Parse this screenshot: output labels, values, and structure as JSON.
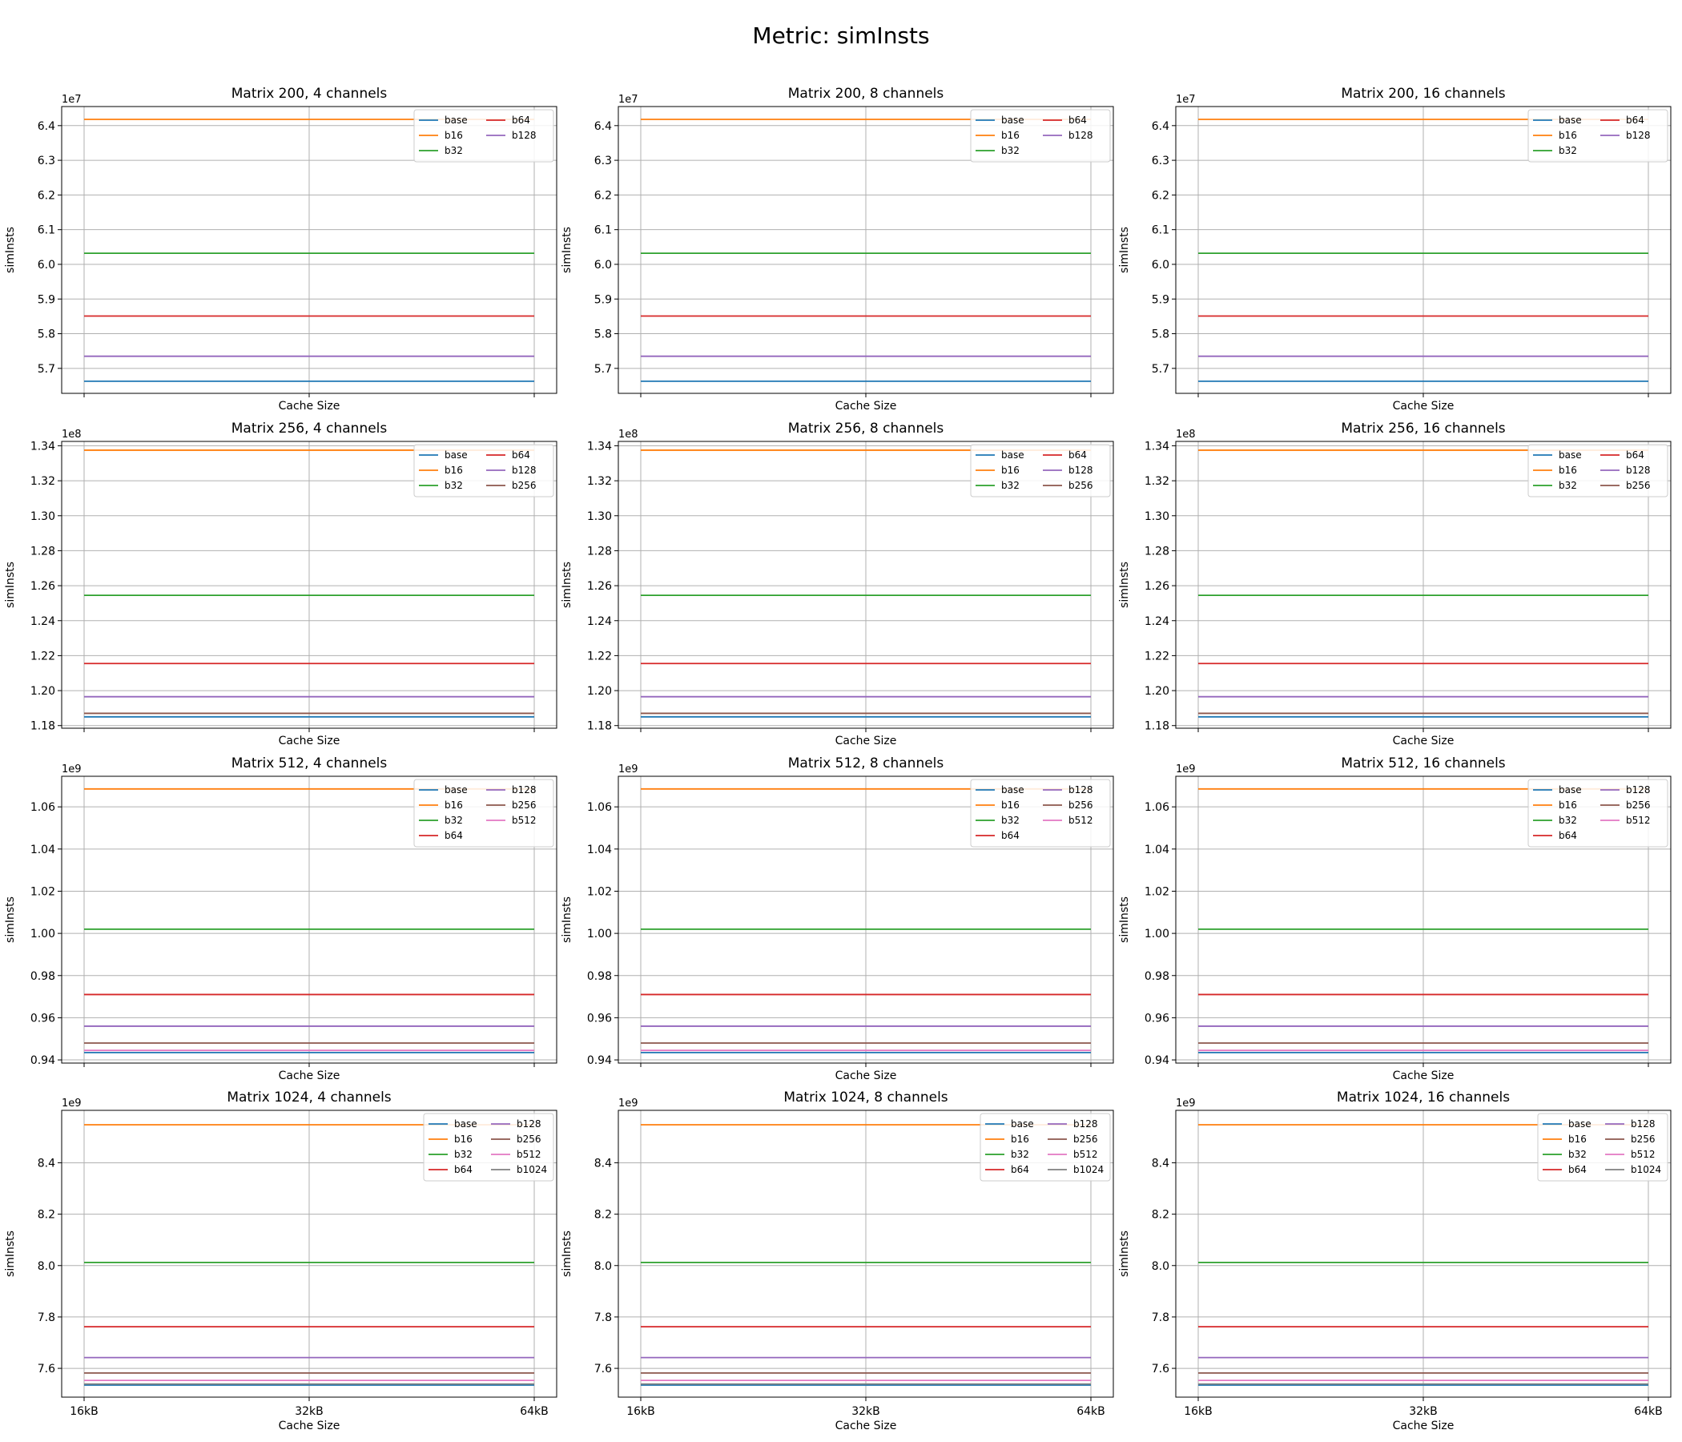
{
  "suptitle": "Metric: simInsts",
  "colors": {
    "base": "#1f77b4",
    "b16": "#ff7f0e",
    "b32": "#2ca02c",
    "b64": "#d62728",
    "b128": "#9467bd",
    "b256": "#8c564b",
    "b512": "#e377c2",
    "b1024": "#7f7f7f"
  },
  "chart_data": [
    {
      "type": "line",
      "title": "Matrix 200, 4 channels",
      "xlabel": "Cache Size",
      "ylabel": "simInsts",
      "categories": [
        "16kB",
        "32kB",
        "64kB"
      ],
      "show_xticklabels": false,
      "offset": "1e7",
      "scale": 10000000,
      "ylim": [
        5.628,
        6.455
      ],
      "yticks": [
        "5.7",
        "5.8",
        "5.9",
        "6.0",
        "6.1",
        "6.2",
        "6.3",
        "6.4"
      ],
      "legend_position": "top-right",
      "legend_columns": 2,
      "series": [
        {
          "name": "base",
          "values": [
            5.663,
            5.663,
            5.663
          ]
        },
        {
          "name": "b16",
          "values": [
            6.418,
            6.418,
            6.418
          ]
        },
        {
          "name": "b32",
          "values": [
            6.032,
            6.032,
            6.032
          ]
        },
        {
          "name": "b64",
          "values": [
            5.851,
            5.851,
            5.851
          ]
        },
        {
          "name": "b128",
          "values": [
            5.735,
            5.735,
            5.735
          ]
        }
      ]
    },
    {
      "type": "line",
      "title": "Matrix 200, 8 channels",
      "xlabel": "Cache Size",
      "ylabel": "simInsts",
      "categories": [
        "16kB",
        "32kB",
        "64kB"
      ],
      "show_xticklabels": false,
      "offset": "1e7",
      "scale": 10000000,
      "ylim": [
        5.628,
        6.455
      ],
      "yticks": [
        "5.7",
        "5.8",
        "5.9",
        "6.0",
        "6.1",
        "6.2",
        "6.3",
        "6.4"
      ],
      "legend_position": "top-right",
      "legend_columns": 2,
      "series": [
        {
          "name": "base",
          "values": [
            5.663,
            5.663,
            5.663
          ]
        },
        {
          "name": "b16",
          "values": [
            6.418,
            6.418,
            6.418
          ]
        },
        {
          "name": "b32",
          "values": [
            6.032,
            6.032,
            6.032
          ]
        },
        {
          "name": "b64",
          "values": [
            5.851,
            5.851,
            5.851
          ]
        },
        {
          "name": "b128",
          "values": [
            5.735,
            5.735,
            5.735
          ]
        }
      ]
    },
    {
      "type": "line",
      "title": "Matrix 200, 16 channels",
      "xlabel": "Cache Size",
      "ylabel": "simInsts",
      "categories": [
        "16kB",
        "32kB",
        "64kB"
      ],
      "show_xticklabels": false,
      "offset": "1e7",
      "scale": 10000000,
      "ylim": [
        5.628,
        6.455
      ],
      "yticks": [
        "5.7",
        "5.8",
        "5.9",
        "6.0",
        "6.1",
        "6.2",
        "6.3",
        "6.4"
      ],
      "legend_position": "top-right",
      "legend_columns": 2,
      "series": [
        {
          "name": "base",
          "values": [
            5.663,
            5.663,
            5.663
          ]
        },
        {
          "name": "b16",
          "values": [
            6.418,
            6.418,
            6.418
          ]
        },
        {
          "name": "b32",
          "values": [
            6.032,
            6.032,
            6.032
          ]
        },
        {
          "name": "b64",
          "values": [
            5.851,
            5.851,
            5.851
          ]
        },
        {
          "name": "b128",
          "values": [
            5.735,
            5.735,
            5.735
          ]
        }
      ]
    },
    {
      "type": "line",
      "title": "Matrix 256, 4 channels",
      "xlabel": "Cache Size",
      "ylabel": "simInsts",
      "categories": [
        "16kB",
        "32kB",
        "64kB"
      ],
      "show_xticklabels": false,
      "offset": "1e8",
      "scale": 100000000,
      "ylim": [
        1.1785,
        1.3425
      ],
      "yticks": [
        "1.18",
        "1.20",
        "1.22",
        "1.24",
        "1.26",
        "1.28",
        "1.30",
        "1.32",
        "1.34"
      ],
      "legend_position": "top-right",
      "legend_columns": 2,
      "series": [
        {
          "name": "base",
          "values": [
            1.185,
            1.185,
            1.185
          ]
        },
        {
          "name": "b16",
          "values": [
            1.3375,
            1.3375,
            1.3375
          ]
        },
        {
          "name": "b32",
          "values": [
            1.2545,
            1.2545,
            1.2545
          ]
        },
        {
          "name": "b64",
          "values": [
            1.2155,
            1.2155,
            1.2155
          ]
        },
        {
          "name": "b128",
          "values": [
            1.1965,
            1.1965,
            1.1965
          ]
        },
        {
          "name": "b256",
          "values": [
            1.187,
            1.187,
            1.187
          ]
        }
      ]
    },
    {
      "type": "line",
      "title": "Matrix 256, 8 channels",
      "xlabel": "Cache Size",
      "ylabel": "simInsts",
      "categories": [
        "16kB",
        "32kB",
        "64kB"
      ],
      "show_xticklabels": false,
      "offset": "1e8",
      "scale": 100000000,
      "ylim": [
        1.1785,
        1.3425
      ],
      "yticks": [
        "1.18",
        "1.20",
        "1.22",
        "1.24",
        "1.26",
        "1.28",
        "1.30",
        "1.32",
        "1.34"
      ],
      "legend_position": "top-right",
      "legend_columns": 2,
      "series": [
        {
          "name": "base",
          "values": [
            1.185,
            1.185,
            1.185
          ]
        },
        {
          "name": "b16",
          "values": [
            1.3375,
            1.3375,
            1.3375
          ]
        },
        {
          "name": "b32",
          "values": [
            1.2545,
            1.2545,
            1.2545
          ]
        },
        {
          "name": "b64",
          "values": [
            1.2155,
            1.2155,
            1.2155
          ]
        },
        {
          "name": "b128",
          "values": [
            1.1965,
            1.1965,
            1.1965
          ]
        },
        {
          "name": "b256",
          "values": [
            1.187,
            1.187,
            1.187
          ]
        }
      ]
    },
    {
      "type": "line",
      "title": "Matrix 256, 16 channels",
      "xlabel": "Cache Size",
      "ylabel": "simInsts",
      "categories": [
        "16kB",
        "32kB",
        "64kB"
      ],
      "show_xticklabels": false,
      "offset": "1e8",
      "scale": 100000000,
      "ylim": [
        1.1785,
        1.3425
      ],
      "yticks": [
        "1.18",
        "1.20",
        "1.22",
        "1.24",
        "1.26",
        "1.28",
        "1.30",
        "1.32",
        "1.34"
      ],
      "legend_position": "top-right",
      "legend_columns": 2,
      "series": [
        {
          "name": "base",
          "values": [
            1.185,
            1.185,
            1.185
          ]
        },
        {
          "name": "b16",
          "values": [
            1.3375,
            1.3375,
            1.3375
          ]
        },
        {
          "name": "b32",
          "values": [
            1.2545,
            1.2545,
            1.2545
          ]
        },
        {
          "name": "b64",
          "values": [
            1.2155,
            1.2155,
            1.2155
          ]
        },
        {
          "name": "b128",
          "values": [
            1.1965,
            1.1965,
            1.1965
          ]
        },
        {
          "name": "b256",
          "values": [
            1.187,
            1.187,
            1.187
          ]
        }
      ]
    },
    {
      "type": "line",
      "title": "Matrix 512, 4 channels",
      "xlabel": "Cache Size",
      "ylabel": "simInsts",
      "categories": [
        "16kB",
        "32kB",
        "64kB"
      ],
      "show_xticklabels": false,
      "offset": "1e9",
      "scale": 1000000000,
      "ylim": [
        0.9385,
        1.0745
      ],
      "yticks": [
        "0.94",
        "0.96",
        "0.98",
        "1.00",
        "1.02",
        "1.04",
        "1.06"
      ],
      "legend_position": "top-right",
      "legend_columns": 2,
      "series": [
        {
          "name": "base",
          "values": [
            0.9435,
            0.9435,
            0.9435
          ]
        },
        {
          "name": "b16",
          "values": [
            1.0685,
            1.0685,
            1.0685
          ]
        },
        {
          "name": "b32",
          "values": [
            1.002,
            1.002,
            1.002
          ]
        },
        {
          "name": "b64",
          "values": [
            0.971,
            0.971,
            0.971
          ]
        },
        {
          "name": "b128",
          "values": [
            0.956,
            0.956,
            0.956
          ]
        },
        {
          "name": "b256",
          "values": [
            0.948,
            0.948,
            0.948
          ]
        },
        {
          "name": "b512",
          "values": [
            0.9445,
            0.9445,
            0.9445
          ]
        }
      ]
    },
    {
      "type": "line",
      "title": "Matrix 512, 8 channels",
      "xlabel": "Cache Size",
      "ylabel": "simInsts",
      "categories": [
        "16kB",
        "32kB",
        "64kB"
      ],
      "show_xticklabels": false,
      "offset": "1e9",
      "scale": 1000000000,
      "ylim": [
        0.9385,
        1.0745
      ],
      "yticks": [
        "0.94",
        "0.96",
        "0.98",
        "1.00",
        "1.02",
        "1.04",
        "1.06"
      ],
      "legend_position": "top-right",
      "legend_columns": 2,
      "series": [
        {
          "name": "base",
          "values": [
            0.9435,
            0.9435,
            0.9435
          ]
        },
        {
          "name": "b16",
          "values": [
            1.0685,
            1.0685,
            1.0685
          ]
        },
        {
          "name": "b32",
          "values": [
            1.002,
            1.002,
            1.002
          ]
        },
        {
          "name": "b64",
          "values": [
            0.971,
            0.971,
            0.971
          ]
        },
        {
          "name": "b128",
          "values": [
            0.956,
            0.956,
            0.956
          ]
        },
        {
          "name": "b256",
          "values": [
            0.948,
            0.948,
            0.948
          ]
        },
        {
          "name": "b512",
          "values": [
            0.9445,
            0.9445,
            0.9445
          ]
        }
      ]
    },
    {
      "type": "line",
      "title": "Matrix 512, 16 channels",
      "xlabel": "Cache Size",
      "ylabel": "simInsts",
      "categories": [
        "16kB",
        "32kB",
        "64kB"
      ],
      "show_xticklabels": false,
      "offset": "1e9",
      "scale": 1000000000,
      "ylim": [
        0.9385,
        1.0745
      ],
      "yticks": [
        "0.94",
        "0.96",
        "0.98",
        "1.00",
        "1.02",
        "1.04",
        "1.06"
      ],
      "legend_position": "top-right",
      "legend_columns": 2,
      "series": [
        {
          "name": "base",
          "values": [
            0.9435,
            0.9435,
            0.9435
          ]
        },
        {
          "name": "b16",
          "values": [
            1.0685,
            1.0685,
            1.0685
          ]
        },
        {
          "name": "b32",
          "values": [
            1.002,
            1.002,
            1.002
          ]
        },
        {
          "name": "b64",
          "values": [
            0.971,
            0.971,
            0.971
          ]
        },
        {
          "name": "b128",
          "values": [
            0.956,
            0.956,
            0.956
          ]
        },
        {
          "name": "b256",
          "values": [
            0.948,
            0.948,
            0.948
          ]
        },
        {
          "name": "b512",
          "values": [
            0.9445,
            0.9445,
            0.9445
          ]
        }
      ]
    },
    {
      "type": "line",
      "title": "Matrix 1024, 4 channels",
      "xlabel": "Cache Size",
      "ylabel": "simInsts",
      "categories": [
        "16kB",
        "32kB",
        "64kB"
      ],
      "show_xticklabels": true,
      "offset": "1e9",
      "scale": 1000000000,
      "ylim": [
        7.488,
        8.604
      ],
      "yticks": [
        "7.6",
        "7.8",
        "8.0",
        "8.2",
        "8.4"
      ],
      "legend_position": "top-right",
      "legend_columns": 2,
      "series": [
        {
          "name": "base",
          "values": [
            7.535,
            7.535,
            7.535
          ]
        },
        {
          "name": "b16",
          "values": [
            8.548,
            8.548,
            8.548
          ]
        },
        {
          "name": "b32",
          "values": [
            8.012,
            8.012,
            8.012
          ]
        },
        {
          "name": "b64",
          "values": [
            7.762,
            7.762,
            7.762
          ]
        },
        {
          "name": "b128",
          "values": [
            7.642,
            7.642,
            7.642
          ]
        },
        {
          "name": "b256",
          "values": [
            7.582,
            7.582,
            7.582
          ]
        },
        {
          "name": "b512",
          "values": [
            7.553,
            7.553,
            7.553
          ]
        },
        {
          "name": "b1024",
          "values": [
            7.539,
            7.539,
            7.539
          ]
        }
      ]
    },
    {
      "type": "line",
      "title": "Matrix 1024, 8 channels",
      "xlabel": "Cache Size",
      "ylabel": "simInsts",
      "categories": [
        "16kB",
        "32kB",
        "64kB"
      ],
      "show_xticklabels": true,
      "offset": "1e9",
      "scale": 1000000000,
      "ylim": [
        7.488,
        8.604
      ],
      "yticks": [
        "7.6",
        "7.8",
        "8.0",
        "8.2",
        "8.4"
      ],
      "legend_position": "top-right",
      "legend_columns": 2,
      "series": [
        {
          "name": "base",
          "values": [
            7.535,
            7.535,
            7.535
          ]
        },
        {
          "name": "b16",
          "values": [
            8.548,
            8.548,
            8.548
          ]
        },
        {
          "name": "b32",
          "values": [
            8.012,
            8.012,
            8.012
          ]
        },
        {
          "name": "b64",
          "values": [
            7.762,
            7.762,
            7.762
          ]
        },
        {
          "name": "b128",
          "values": [
            7.642,
            7.642,
            7.642
          ]
        },
        {
          "name": "b256",
          "values": [
            7.582,
            7.582,
            7.582
          ]
        },
        {
          "name": "b512",
          "values": [
            7.553,
            7.553,
            7.553
          ]
        },
        {
          "name": "b1024",
          "values": [
            7.539,
            7.539,
            7.539
          ]
        }
      ]
    },
    {
      "type": "line",
      "title": "Matrix 1024, 16 channels",
      "xlabel": "Cache Size",
      "ylabel": "simInsts",
      "categories": [
        "16kB",
        "32kB",
        "64kB"
      ],
      "show_xticklabels": true,
      "offset": "1e9",
      "scale": 1000000000,
      "ylim": [
        7.488,
        8.604
      ],
      "yticks": [
        "7.6",
        "7.8",
        "8.0",
        "8.2",
        "8.4"
      ],
      "legend_position": "top-right",
      "legend_columns": 2,
      "series": [
        {
          "name": "base",
          "values": [
            7.535,
            7.535,
            7.535
          ]
        },
        {
          "name": "b16",
          "values": [
            8.548,
            8.548,
            8.548
          ]
        },
        {
          "name": "b32",
          "values": [
            8.012,
            8.012,
            8.012
          ]
        },
        {
          "name": "b64",
          "values": [
            7.762,
            7.762,
            7.762
          ]
        },
        {
          "name": "b128",
          "values": [
            7.642,
            7.642,
            7.642
          ]
        },
        {
          "name": "b256",
          "values": [
            7.582,
            7.582,
            7.582
          ]
        },
        {
          "name": "b512",
          "values": [
            7.553,
            7.553,
            7.553
          ]
        },
        {
          "name": "b1024",
          "values": [
            7.539,
            7.539,
            7.539
          ]
        }
      ]
    }
  ]
}
